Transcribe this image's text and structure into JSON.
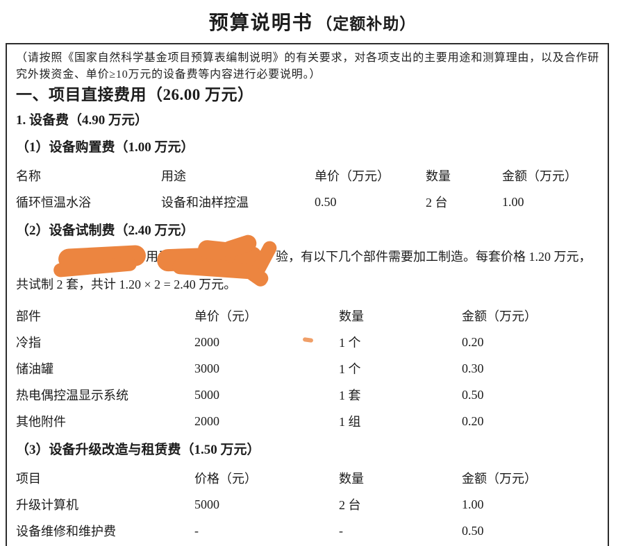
{
  "title": {
    "main": "预算说明书",
    "suffix": "（定额补助）"
  },
  "note": "（请按照《国家自然科学基金项目预算表编制说明》的有关要求，对各项支出的主要用途和测算理由，以及合作研究外拨资金、单价≥10万元的设备费等内容进行必要说明。）",
  "sections": {
    "direct_cost": "一、项目直接费用（26.00 万元）",
    "equipment_fee": "1. 设备费（4.90 万元）",
    "purchase": "（1）设备购置费（1.00 万元）",
    "trial": "（2）设备试制费（2.40 万元）",
    "upgrade": "（3）设备升级改造与租赁费（1.50 万元）"
  },
  "purchase_table": {
    "headers": [
      "名称",
      "用途",
      "单价（万元）",
      "数量",
      "金额（万元）"
    ],
    "rows": [
      [
        "循环恒温水浴",
        "设备和油样控温",
        "0.50",
        "2 台",
        "1.00"
      ]
    ]
  },
  "trial_paragraph": {
    "visible_mid": "用于",
    "line1_tail": "验，有以下几个部件需要加工制造。每套价格 1.20 万元，",
    "line2": "共试制 2 套，共计 1.20 × 2 = 2.40 万元。"
  },
  "trial_table": {
    "headers": [
      "部件",
      "单价（元）",
      "数量",
      "金额（万元）"
    ],
    "rows": [
      [
        "冷指",
        "2000",
        "1 个",
        "0.20"
      ],
      [
        "储油罐",
        "3000",
        "1 个",
        "0.30"
      ],
      [
        "热电偶控温显示系统",
        "5000",
        "1 套",
        "0.50"
      ],
      [
        "其他附件",
        "2000",
        "1 组",
        "0.20"
      ]
    ]
  },
  "upgrade_table": {
    "headers": [
      "项目",
      "价格（元）",
      "数量",
      "金额（万元）"
    ],
    "rows": [
      [
        "升级计算机",
        "5000",
        "2 台",
        "1.00"
      ],
      [
        "设备维修和维护费",
        "-",
        "-",
        "0.50"
      ]
    ]
  },
  "colors": {
    "redaction_orange": "#ec8540"
  }
}
